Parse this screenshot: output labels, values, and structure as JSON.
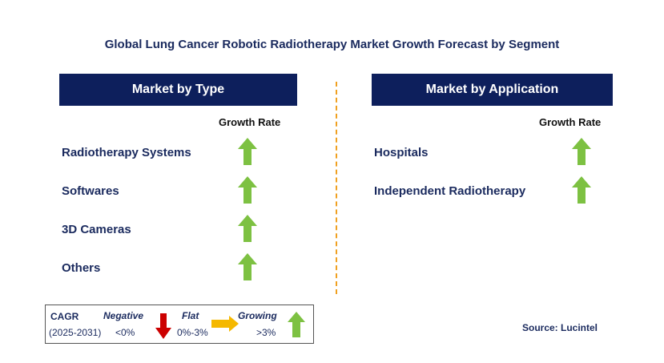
{
  "title": "Global Lung Cancer Robotic Radiotherapy Market Growth Forecast by Segment",
  "colors": {
    "header_bg": "#0d1f5c",
    "text": "#1a2a5e",
    "up_arrow": "#7dc142",
    "down_arrow": "#cc0000",
    "flat_arrow": "#f5b800",
    "divider": "#f0a020"
  },
  "type_panel": {
    "header": "Market by Type",
    "growth_label": "Growth Rate",
    "items": [
      {
        "label": "Radiotherapy Systems",
        "trend": "up-arrow-icon"
      },
      {
        "label": "Softwares",
        "trend": "up-arrow-icon"
      },
      {
        "label": "3D Cameras",
        "trend": "up-arrow-icon"
      },
      {
        "label": "Others",
        "trend": "up-arrow-icon"
      }
    ]
  },
  "application_panel": {
    "header": "Market by Application",
    "growth_label": "Growth Rate",
    "items": [
      {
        "label": "Hospitals",
        "trend": "up-arrow-icon"
      },
      {
        "label": "Independent Radiotherapy",
        "trend": "up-arrow-icon"
      }
    ]
  },
  "legend": {
    "cagr_label": "CAGR",
    "period": "(2025-2031)",
    "negative_label": "Negative",
    "negative_value": "<0%",
    "flat_label": "Flat",
    "flat_value": "0%-3%",
    "growing_label": "Growing",
    "growing_value": ">3%"
  },
  "source": "Source: Lucintel"
}
